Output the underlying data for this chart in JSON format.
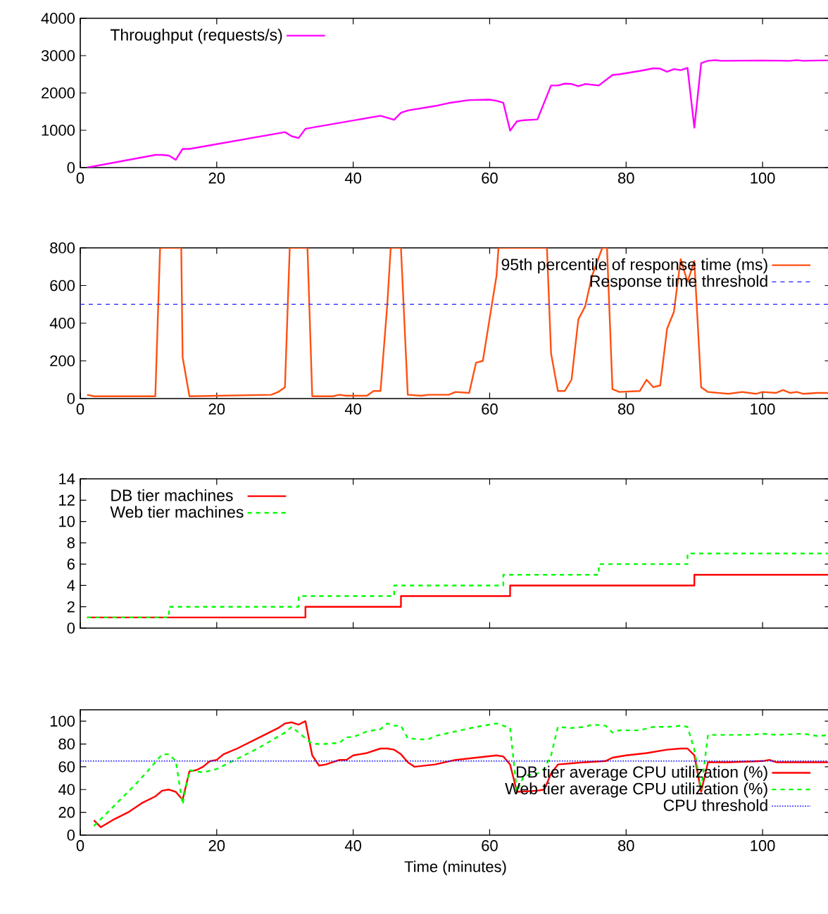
{
  "chart_data": [
    {
      "type": "line",
      "xlim": [
        0,
        110
      ],
      "xticks": [
        0,
        20,
        40,
        60,
        80,
        100
      ],
      "ylim": [
        0,
        4000
      ],
      "yticks": [
        0,
        1000,
        2000,
        3000,
        4000
      ],
      "legend": "top left",
      "series": [
        {
          "name": "Throughput (requests/s)",
          "color": "#ff00ff",
          "x": [
            1,
            11,
            12,
            13,
            14,
            15,
            16,
            30,
            31,
            32,
            33,
            44,
            46,
            47,
            48,
            52,
            54,
            57,
            60,
            61,
            62,
            63,
            64,
            65,
            67,
            69,
            70,
            71,
            72,
            73,
            74,
            76,
            78,
            79,
            82,
            84,
            85,
            86,
            87,
            88,
            89,
            90,
            91,
            92,
            93,
            94,
            100,
            104,
            105,
            106,
            108,
            110
          ],
          "values": [
            0,
            340,
            340,
            320,
            210,
            500,
            500,
            950,
            840,
            790,
            1040,
            1390,
            1280,
            1470,
            1530,
            1650,
            1730,
            1810,
            1820,
            1790,
            1740,
            990,
            1240,
            1270,
            1290,
            2200,
            2200,
            2250,
            2240,
            2180,
            2240,
            2200,
            2480,
            2500,
            2590,
            2660,
            2650,
            2570,
            2640,
            2610,
            2670,
            1070,
            2800,
            2860,
            2880,
            2860,
            2870,
            2860,
            2880,
            2860,
            2870,
            2870
          ]
        }
      ]
    },
    {
      "type": "line",
      "xlim": [
        0,
        110
      ],
      "xticks": [
        0,
        20,
        40,
        60,
        80,
        100
      ],
      "ylim": [
        0,
        800
      ],
      "yticks": [
        0,
        200,
        400,
        600,
        800
      ],
      "legend": "top right",
      "series": [
        {
          "name": "95th percentile of response time (ms)",
          "color": "#ff5010",
          "x": [
            1,
            2,
            11,
            11.7,
            14.8,
            15,
            16,
            28,
            29,
            30,
            30.7,
            33.3,
            34,
            37,
            38,
            39,
            42,
            43,
            44,
            45,
            45.5,
            47,
            48,
            50,
            51,
            54,
            55,
            57,
            58,
            59,
            61,
            61.3,
            68.4,
            69,
            70,
            71,
            72,
            73,
            74,
            75,
            76.5,
            77.2,
            78,
            79,
            82,
            83,
            84,
            85,
            86,
            87,
            88,
            89,
            90,
            91,
            92,
            95,
            97,
            99,
            100,
            102,
            103,
            104,
            105,
            106,
            108,
            110
          ],
          "values": [
            20,
            12,
            12,
            800,
            800,
            220,
            12,
            20,
            35,
            60,
            800,
            800,
            12,
            12,
            20,
            15,
            15,
            40,
            40,
            500,
            800,
            800,
            20,
            15,
            20,
            20,
            35,
            30,
            190,
            200,
            650,
            800,
            800,
            240,
            40,
            40,
            100,
            420,
            490,
            650,
            800,
            800,
            50,
            35,
            40,
            100,
            60,
            70,
            370,
            460,
            740,
            620,
            730,
            60,
            35,
            25,
            35,
            25,
            35,
            30,
            45,
            30,
            35,
            25,
            30,
            30
          ]
        }
      ],
      "ref_lines": [
        {
          "axis": "y",
          "value": 500,
          "label": "Response time threshold",
          "color": "#4040ff",
          "line_style": "dashed"
        }
      ]
    },
    {
      "type": "step",
      "xlim": [
        0,
        110
      ],
      "xticks": [
        0,
        20,
        40,
        60,
        80,
        100
      ],
      "ylim": [
        0,
        14
      ],
      "yticks": [
        0,
        2,
        4,
        6,
        8,
        10,
        12,
        14
      ],
      "legend": "top left",
      "tick_labels": "y",
      "series": [
        {
          "name": "DB tier machines",
          "color": "#ff0000",
          "line_style": "solid",
          "x": [
            1,
            33,
            47,
            63,
            90,
            110
          ],
          "values": [
            1,
            2,
            3,
            4,
            5,
            5
          ]
        },
        {
          "name": "Web tier machines",
          "color": "#00ff00",
          "line_style": "dashed",
          "x": [
            1,
            13,
            32,
            46,
            62,
            76,
            89,
            110
          ],
          "values": [
            1,
            2,
            3,
            4,
            5,
            6,
            7,
            7
          ]
        }
      ]
    },
    {
      "type": "line",
      "xlim": [
        0,
        110
      ],
      "xticks": [
        0,
        20,
        40,
        60,
        80,
        100
      ],
      "ylim": [
        0,
        110
      ],
      "yticks": [
        0,
        20,
        40,
        60,
        80,
        100
      ],
      "legend": "right",
      "xlabel": "Time (minutes)",
      "series": [
        {
          "name": "DB tier average CPU utilization (%)",
          "color": "#ff0000",
          "line_style": "solid",
          "x": [
            2,
            3,
            5,
            7,
            9,
            11,
            12,
            13,
            14,
            15,
            16,
            17,
            18,
            19,
            20,
            21,
            23,
            25,
            27,
            29,
            30,
            31,
            32,
            33,
            34,
            35,
            36,
            38,
            39,
            40,
            42,
            44,
            45,
            46,
            47,
            48,
            49,
            52,
            55,
            58,
            61,
            62,
            63,
            64,
            67,
            68,
            69,
            70,
            72,
            74,
            77,
            78,
            80,
            83,
            86,
            88,
            89,
            90,
            91,
            92,
            95,
            100,
            101,
            102,
            105,
            108,
            110
          ],
          "values": [
            13,
            7,
            14,
            20,
            28,
            34,
            39,
            40,
            38,
            31,
            56,
            57,
            60,
            65,
            66,
            71,
            76,
            82,
            88,
            94,
            98,
            99,
            97,
            100,
            70,
            61,
            62,
            66,
            66,
            70,
            72,
            76,
            76,
            75,
            71,
            64,
            60,
            62,
            66,
            68,
            70,
            69,
            62,
            38,
            39,
            40,
            54,
            62,
            63,
            64,
            65,
            68,
            70,
            72,
            75,
            76,
            76,
            70,
            38,
            64,
            64,
            65,
            66,
            64,
            64,
            64,
            64
          ]
        },
        {
          "name": "Web tier average CPU utilization (%)",
          "color": "#00ff00",
          "line_style": "dashed",
          "x": [
            2,
            4,
            6,
            8,
            10,
            12,
            13,
            14,
            15,
            16,
            18,
            20,
            22,
            24,
            26,
            28,
            30,
            31,
            33,
            34,
            36,
            38,
            39,
            40,
            42,
            44,
            45,
            46,
            47,
            48,
            50,
            51,
            52,
            55,
            58,
            61,
            62,
            63,
            64,
            65,
            67,
            68,
            69,
            70,
            72,
            74,
            75,
            77,
            78,
            79,
            82,
            84,
            86,
            88,
            89,
            90,
            91,
            92,
            95,
            98,
            100,
            102,
            106,
            108,
            110
          ],
          "values": [
            8,
            20,
            32,
            44,
            57,
            71,
            71,
            65,
            27,
            57,
            55,
            58,
            64,
            70,
            76,
            83,
            90,
            95,
            85,
            80,
            80,
            81,
            86,
            86,
            91,
            93,
            98,
            96,
            96,
            85,
            84,
            84,
            87,
            91,
            95,
            98,
            96,
            94,
            38,
            52,
            54,
            58,
            70,
            95,
            94,
            95,
            97,
            96,
            90,
            92,
            92,
            95,
            95,
            96,
            95,
            75,
            40,
            88,
            88,
            88,
            89,
            88,
            89,
            87,
            88
          ]
        }
      ],
      "ref_lines": [
        {
          "axis": "y",
          "value": 65,
          "label": "CPU threshold",
          "color": "#0000ff",
          "line_style": "dotted"
        }
      ]
    }
  ]
}
